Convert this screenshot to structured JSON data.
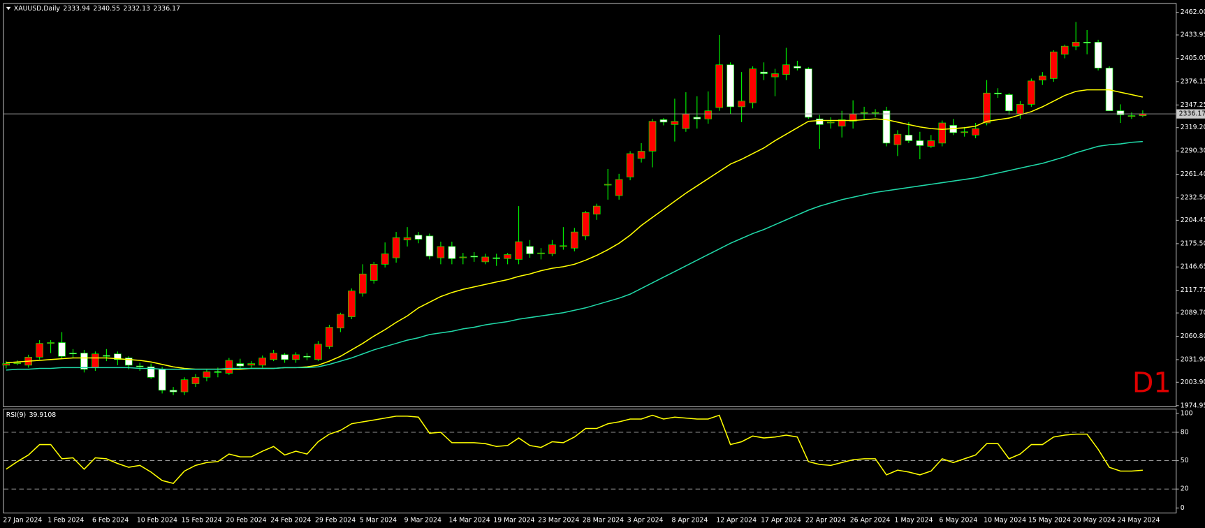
{
  "chart_data": [
    {
      "type": "candlestick",
      "symbol": "XAUUSD,Daily",
      "categories": [
        "27 Jan 2024",
        null,
        null,
        null,
        "1 Feb 2024",
        null,
        null,
        null,
        "6 Feb 2024",
        null,
        null,
        null,
        "10 Feb 2024",
        null,
        null,
        null,
        "15 Feb 2024",
        null,
        null,
        null,
        "20 Feb 2024",
        null,
        null,
        null,
        "24 Feb 2024",
        null,
        null,
        null,
        "29 Feb 2024",
        null,
        null,
        null,
        "5 Mar 2024",
        null,
        null,
        null,
        "9 Mar 2024",
        null,
        null,
        null,
        "14 Mar 2024",
        null,
        null,
        null,
        "19 Mar 2024",
        null,
        null,
        null,
        "23 Mar 2024",
        null,
        null,
        null,
        "28 Mar 2024",
        null,
        null,
        null,
        "3 Apr 2024",
        null,
        null,
        null,
        "8 Apr 2024",
        null,
        null,
        null,
        "12 Apr 2024",
        null,
        null,
        null,
        "17 Apr 2024",
        null,
        null,
        null,
        "22 Apr 2024",
        null,
        null,
        null,
        "26 Apr 2024",
        null,
        null,
        null,
        "1 May 2024",
        null,
        null,
        null,
        "6 May 2024",
        null,
        null,
        null,
        "10 May 2024",
        null,
        null,
        null,
        "15 May 2024",
        null,
        null,
        null,
        "20 May 2024",
        null,
        null,
        null,
        "24 May 2024",
        null,
        null
      ],
      "open": [
        2025,
        2027,
        2025,
        2035,
        2052,
        2053,
        2040,
        2040,
        2022,
        2037,
        2039,
        2034,
        2024,
        2023,
        2020,
        1994,
        1992,
        2002,
        2010,
        2017,
        2015,
        2027,
        2025,
        2025,
        2032,
        2038,
        2032,
        2036,
        2032,
        2048,
        2071,
        2085,
        2114,
        2130,
        2150,
        2158,
        2180,
        2186,
        2185,
        2158,
        2172,
        2158,
        2160,
        2153,
        2158,
        2157,
        2156,
        2172,
        2163,
        2163,
        2172,
        2170,
        2185,
        2212,
        2248,
        2235,
        2258,
        2281,
        2290,
        2329,
        2323,
        2318,
        2332,
        2330,
        2344,
        2397,
        2345,
        2350,
        2388,
        2382,
        2385,
        2395,
        2392,
        2330,
        2325,
        2321,
        2327,
        2337,
        2338,
        2340,
        2298,
        2310,
        2303,
        2296,
        2300,
        2322,
        2313,
        2310,
        2325,
        2362,
        2360,
        2336,
        2348,
        2378,
        2380,
        2410,
        2420,
        2425,
        2425,
        2393,
        2340,
        2334,
        2333.94
      ],
      "high": [
        2030,
        2031,
        2038,
        2056,
        2056,
        2066,
        2045,
        2044,
        2042,
        2045,
        2042,
        2036,
        2028,
        2027,
        2023,
        1998,
        2010,
        2014,
        2020,
        2022,
        2034,
        2033,
        2030,
        2037,
        2044,
        2040,
        2041,
        2040,
        2055,
        2075,
        2090,
        2120,
        2150,
        2153,
        2177,
        2190,
        2196,
        2190,
        2188,
        2178,
        2178,
        2164,
        2165,
        2163,
        2163,
        2164,
        2222,
        2180,
        2170,
        2180,
        2196,
        2195,
        2216,
        2225,
        2268,
        2262,
        2290,
        2300,
        2330,
        2331,
        2355,
        2363,
        2358,
        2364,
        2434,
        2400,
        2388,
        2395,
        2400,
        2392,
        2418,
        2402,
        2394,
        2335,
        2332,
        2340,
        2353,
        2345,
        2342,
        2345,
        2316,
        2326,
        2314,
        2310,
        2328,
        2330,
        2320,
        2325,
        2378,
        2368,
        2362,
        2352,
        2380,
        2388,
        2415,
        2422,
        2450,
        2440,
        2428,
        2395,
        2348,
        2338,
        2340.55
      ],
      "low": [
        2021,
        2025,
        2022,
        2032,
        2040,
        2033,
        2034,
        2016,
        2018,
        2030,
        2025,
        2020,
        2018,
        2008,
        1990,
        1988,
        1988,
        1998,
        2005,
        2010,
        2013,
        2020,
        2022,
        2022,
        2030,
        2028,
        2028,
        2031,
        2030,
        2045,
        2066,
        2082,
        2110,
        2126,
        2146,
        2152,
        2172,
        2176,
        2156,
        2150,
        2150,
        2150,
        2153,
        2150,
        2148,
        2150,
        2150,
        2158,
        2156,
        2160,
        2168,
        2166,
        2180,
        2205,
        2230,
        2230,
        2254,
        2276,
        2270,
        2322,
        2302,
        2314,
        2318,
        2324,
        2340,
        2336,
        2326,
        2343,
        2378,
        2358,
        2378,
        2390,
        2330,
        2293,
        2318,
        2307,
        2318,
        2330,
        2332,
        2296,
        2284,
        2300,
        2280,
        2294,
        2296,
        2310,
        2308,
        2306,
        2322,
        2356,
        2335,
        2330,
        2345,
        2372,
        2376,
        2405,
        2415,
        2410,
        2390,
        2340,
        2325,
        2330,
        2332.13
      ],
      "close": [
        2027,
        2028,
        2035,
        2052,
        2053,
        2036,
        2039,
        2020,
        2039,
        2036,
        2032,
        2025,
        2023,
        2010,
        1994,
        1992,
        2007,
        2010,
        2017,
        2016,
        2031,
        2024,
        2027,
        2034,
        2040,
        2032,
        2038,
        2035,
        2051,
        2072,
        2088,
        2117,
        2138,
        2150,
        2163,
        2183,
        2183,
        2181,
        2160,
        2172,
        2157,
        2159,
        2159,
        2159,
        2157,
        2162,
        2178,
        2163,
        2164,
        2174,
        2173,
        2190,
        2214,
        2222,
        2249,
        2255,
        2287,
        2290,
        2327,
        2326,
        2327,
        2336,
        2330,
        2340,
        2397,
        2345,
        2352,
        2392,
        2386,
        2386,
        2397,
        2393,
        2332,
        2323,
        2326,
        2329,
        2336,
        2338,
        2338,
        2300,
        2311,
        2303,
        2297,
        2303,
        2325,
        2313,
        2314,
        2318,
        2362,
        2361,
        2340,
        2348,
        2377,
        2383,
        2413,
        2420,
        2425,
        2424,
        2393,
        2340,
        2335,
        2334,
        2336.17
      ],
      "bull_color": "#ff0000",
      "bear_color": "#ffffff",
      "wick_color": "#00ff00",
      "series": [
        {
          "color": "#ffff00",
          "values": [
            2028,
            2029,
            2030,
            2031,
            2032,
            2033,
            2034,
            2034,
            2034,
            2034,
            2033,
            2032,
            2031,
            2029,
            2026,
            2023,
            2021,
            2020,
            2020,
            2020,
            2020,
            2020,
            2021,
            2021,
            2021,
            2022,
            2022,
            2023,
            2025,
            2030,
            2036,
            2044,
            2052,
            2061,
            2069,
            2078,
            2086,
            2096,
            2103,
            2110,
            2115,
            2119,
            2122,
            2125,
            2128,
            2131,
            2135,
            2138,
            2142,
            2145,
            2147,
            2150,
            2155,
            2161,
            2168,
            2176,
            2186,
            2198,
            2208,
            2218,
            2228,
            2238,
            2247,
            2256,
            2265,
            2274,
            2280,
            2287,
            2294,
            2303,
            2311,
            2319,
            2327,
            2328,
            2328,
            2328,
            2328,
            2329,
            2330,
            2329,
            2326,
            2323,
            2320,
            2318,
            2317,
            2318,
            2319,
            2321,
            2327,
            2329,
            2331,
            2335,
            2339,
            2345,
            2352,
            2359,
            2364,
            2366,
            2366,
            2366,
            2363,
            2360,
            2357
          ]
        },
        {
          "color": "#20d8a8",
          "values": [
            2019,
            2020,
            2020,
            2021,
            2021,
            2022,
            2022,
            2022,
            2022,
            2022,
            2022,
            2022,
            2021,
            2021,
            2020,
            2020,
            2020,
            2020,
            2020,
            2020,
            2021,
            2021,
            2021,
            2021,
            2021,
            2022,
            2022,
            2022,
            2023,
            2026,
            2030,
            2034,
            2039,
            2044,
            2048,
            2052,
            2056,
            2059,
            2063,
            2065,
            2067,
            2070,
            2072,
            2075,
            2077,
            2079,
            2082,
            2084,
            2086,
            2088,
            2090,
            2093,
            2096,
            2100,
            2104,
            2108,
            2113,
            2120,
            2127,
            2134,
            2141,
            2148,
            2155,
            2162,
            2169,
            2176,
            2182,
            2188,
            2193,
            2199,
            2205,
            2211,
            2217,
            2222,
            2226,
            2230,
            2233,
            2236,
            2239,
            2241,
            2243,
            2245,
            2247,
            2249,
            2251,
            2253,
            2255,
            2257,
            2260,
            2263,
            2266,
            2269,
            2272,
            2275,
            2279,
            2283,
            2288,
            2292,
            2296,
            2298,
            2299,
            2301,
            2302
          ]
        }
      ],
      "ylim": [
        1974.0,
        2473.4
      ],
      "yticks": [
        1974.95,
        {
          "value": 2003.9,
          "label": "2003.90"
        },
        {
          "value": 2031.9,
          "label": "2031.90"
        },
        {
          "value": 2060.8,
          "label": "2060.80"
        },
        {
          "value": 2089.7,
          "label": "2089.70"
        },
        2117.75,
        2146.65,
        {
          "value": 2175.5,
          "label": "2175.50"
        },
        2204.45,
        {
          "value": 2232.5,
          "label": "2232.50"
        },
        {
          "value": 2261.4,
          "label": "2261.40"
        },
        {
          "value": 2290.3,
          "label": "2290.30"
        },
        {
          "value": 2319.2,
          "label": "2319.20"
        },
        2347.25,
        2376.15,
        2405.05,
        2433.95,
        {
          "value": 2462.0,
          "label": "2462.00"
        }
      ],
      "timeframe_label": "D1"
    },
    {
      "type": "line",
      "title": "RSI(9)",
      "color": "#ffff00",
      "values": [
        41,
        49,
        56,
        67,
        67,
        52,
        53,
        41,
        53,
        52,
        47,
        43,
        45,
        38,
        29,
        26,
        39,
        45,
        48,
        49,
        57,
        54,
        54,
        60,
        65,
        56,
        60,
        57,
        70,
        78,
        82,
        89,
        91,
        93,
        95,
        97,
        97,
        96,
        79,
        80,
        69,
        69,
        69,
        68,
        65,
        66,
        74,
        66,
        64,
        70,
        69,
        75,
        84,
        84,
        89,
        91,
        94,
        94,
        98,
        94,
        96,
        95,
        94,
        94,
        98,
        67,
        70,
        76,
        74,
        75,
        77,
        75,
        49,
        46,
        45,
        48,
        51,
        52,
        52,
        35,
        40,
        38,
        35,
        39,
        52,
        48,
        52,
        56,
        68,
        68,
        52,
        57,
        67,
        67,
        75,
        77,
        78,
        78,
        62,
        43,
        39,
        39,
        39.9108
      ],
      "ylim": [
        -4.9,
        104.1
      ],
      "yticks": [
        0,
        20,
        50,
        80,
        100
      ],
      "levels": [
        20,
        50,
        80
      ]
    }
  ]
}
